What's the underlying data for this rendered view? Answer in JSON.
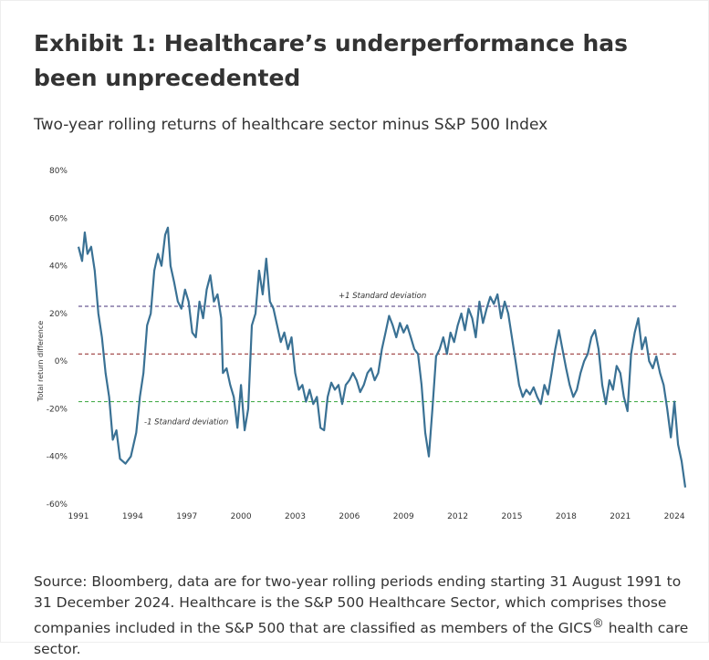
{
  "chart_data": {
    "type": "line",
    "title": "Exhibit 1: Healthcare’s underperformance has been unprecedented",
    "subtitle": "Two-year rolling returns of healthcare sector minus S&P 500 Index",
    "y_label": "Total return difference",
    "source": {
      "before": "Source: Bloomberg, data are for two-year rolling periods ending starting 31 August 1991 to 31 December 2024. Healthcare is the S&P 500 Healthcare Sector, which comprises those companies included in the S&P 500 that are classified as members of the GICS",
      "sup": "®",
      "after": " health care sector."
    },
    "xlim": [
      1991,
      2024.6
    ],
    "xticks": [
      1991,
      1994,
      1997,
      2000,
      2003,
      2006,
      2009,
      2012,
      2015,
      2018,
      2021,
      2024
    ],
    "ylim": [
      -60,
      80
    ],
    "yticks": [
      {
        "value": -60,
        "label": "-60%"
      },
      {
        "value": -40,
        "label": "-40%"
      },
      {
        "value": -20,
        "label": "-20%"
      },
      {
        "value": 0,
        "label": "0%"
      },
      {
        "value": 20,
        "label": "20%"
      },
      {
        "value": 40,
        "label": "40%"
      },
      {
        "value": 60,
        "label": "60%"
      },
      {
        "value": 80,
        "label": "80%"
      }
    ],
    "reference_lines": [
      {
        "value": 23,
        "color": "#6b5b95",
        "label": "+1 Standard deviation"
      },
      {
        "value": 3,
        "color": "#9b3b3b"
      },
      {
        "value": -17,
        "color": "#4caf50",
        "label": "-1 Standard deviation"
      }
    ],
    "series": [
      {
        "color": "#3a7194",
        "x": [
          1991.0,
          1991.2,
          1991.35,
          1991.5,
          1991.7,
          1991.9,
          1992.1,
          1992.3,
          1992.5,
          1992.7,
          1992.9,
          1993.1,
          1993.3,
          1993.6,
          1993.9,
          1994.2,
          1994.4,
          1994.6,
          1994.8,
          1995.0,
          1995.2,
          1995.4,
          1995.6,
          1995.8,
          1995.95,
          1996.1,
          1996.3,
          1996.5,
          1996.7,
          1996.9,
          1997.1,
          1997.3,
          1997.5,
          1997.7,
          1997.9,
          1998.1,
          1998.3,
          1998.5,
          1998.7,
          1998.9,
          1999.0,
          1999.2,
          1999.4,
          1999.6,
          1999.8,
          2000.0,
          2000.2,
          2000.4,
          2000.6,
          2000.8,
          2001.0,
          2001.2,
          2001.4,
          2001.6,
          2001.8,
          2002.0,
          2002.2,
          2002.4,
          2002.6,
          2002.8,
          2003.0,
          2003.2,
          2003.4,
          2003.6,
          2003.8,
          2004.0,
          2004.2,
          2004.4,
          2004.6,
          2004.8,
          2005.0,
          2005.2,
          2005.4,
          2005.6,
          2005.8,
          2006.0,
          2006.2,
          2006.4,
          2006.6,
          2006.8,
          2007.0,
          2007.2,
          2007.4,
          2007.6,
          2007.8,
          2008.0,
          2008.2,
          2008.4,
          2008.6,
          2008.8,
          2009.0,
          2009.2,
          2009.4,
          2009.6,
          2009.8,
          2010.0,
          2010.2,
          2010.4,
          2010.6,
          2010.8,
          2011.0,
          2011.2,
          2011.4,
          2011.6,
          2011.8,
          2012.0,
          2012.2,
          2012.4,
          2012.6,
          2012.8,
          2013.0,
          2013.2,
          2013.4,
          2013.6,
          2013.8,
          2014.0,
          2014.2,
          2014.4,
          2014.6,
          2014.8,
          2015.0,
          2015.2,
          2015.4,
          2015.6,
          2015.8,
          2016.0,
          2016.2,
          2016.4,
          2016.6,
          2016.8,
          2017.0,
          2017.2,
          2017.4,
          2017.6,
          2017.8,
          2018.0,
          2018.2,
          2018.4,
          2018.6,
          2018.8,
          2019.0,
          2019.2,
          2019.4,
          2019.6,
          2019.8,
          2020.0,
          2020.2,
          2020.4,
          2020.6,
          2020.8,
          2021.0,
          2021.2,
          2021.4,
          2021.6,
          2021.8,
          2022.0,
          2022.2,
          2022.4,
          2022.6,
          2022.8,
          2023.0,
          2023.2,
          2023.4,
          2023.6,
          2023.8,
          2024.0,
          2024.2,
          2024.4,
          2024.6
        ],
        "values": [
          48,
          42,
          54,
          45,
          48,
          38,
          20,
          10,
          -5,
          -15,
          -33,
          -29,
          -41,
          -43,
          -40,
          -30,
          -15,
          -5,
          15,
          20,
          38,
          45,
          40,
          53,
          56,
          40,
          33,
          25,
          22,
          30,
          25,
          12,
          10,
          25,
          18,
          30,
          36,
          25,
          28,
          18,
          -5,
          -3,
          -10,
          -15,
          -28,
          -10,
          -29,
          -20,
          15,
          20,
          38,
          28,
          43,
          25,
          22,
          15,
          8,
          12,
          5,
          10,
          -5,
          -12,
          -10,
          -17,
          -12,
          -18,
          -15,
          -28,
          -29,
          -15,
          -9,
          -12,
          -10,
          -18,
          -10,
          -8,
          -5,
          -8,
          -13,
          -10,
          -5,
          -3,
          -8,
          -5,
          5,
          12,
          19,
          15,
          10,
          16,
          12,
          15,
          10,
          5,
          3,
          -10,
          -30,
          -40,
          -20,
          2,
          5,
          10,
          3,
          12,
          8,
          15,
          20,
          13,
          22,
          18,
          10,
          25,
          16,
          22,
          27,
          24,
          28,
          18,
          25,
          20,
          10,
          0,
          -10,
          -15,
          -12,
          -14,
          -11,
          -15,
          -18,
          -10,
          -14,
          -5,
          5,
          13,
          5,
          -3,
          -10,
          -15,
          -12,
          -5,
          0,
          3,
          10,
          13,
          5,
          -10,
          -18,
          -8,
          -12,
          -2,
          -5,
          -15,
          -21,
          3,
          12,
          18,
          5,
          10,
          0,
          -3,
          2,
          -5,
          -10,
          -20,
          -32,
          -17,
          -35,
          -42,
          -53
        ]
      }
    ]
  }
}
